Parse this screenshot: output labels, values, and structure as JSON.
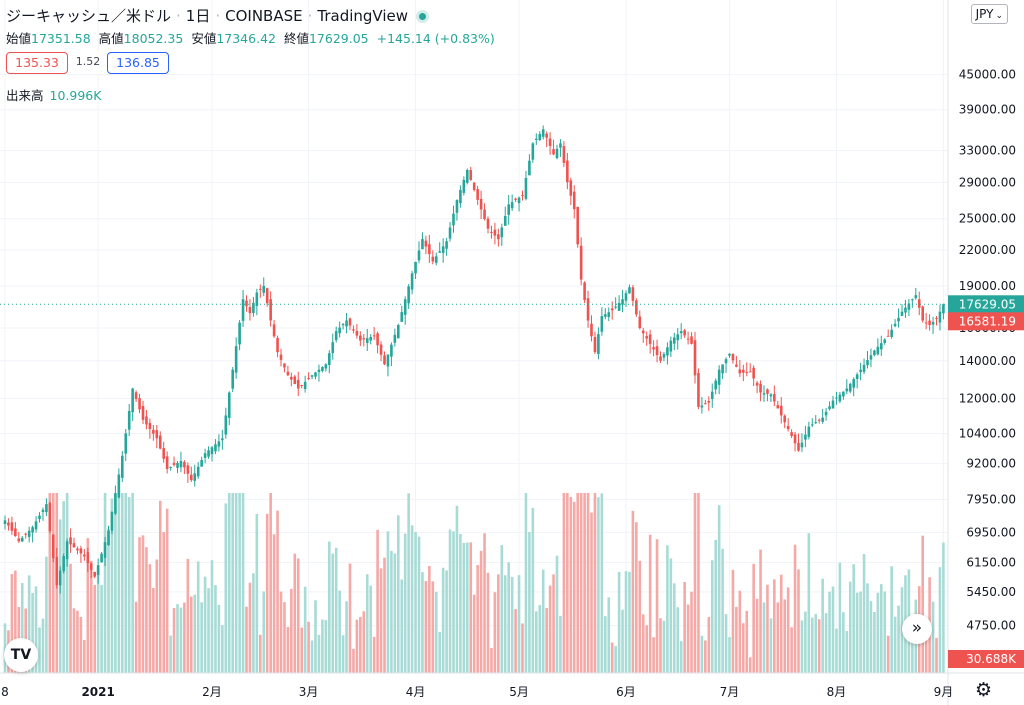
{
  "header": {
    "symbol": "ジーキャッシュ／米ドル",
    "interval": "1日",
    "exchange": "COINBASE",
    "provider": "TradingView",
    "live_icon": "live-dot-icon"
  },
  "ohlc": {
    "open_label": "始値",
    "open": "17351.58",
    "high_label": "高値",
    "high": "18052.35",
    "low_label": "安値",
    "low": "17346.42",
    "close_label": "終値",
    "close": "17629.05",
    "change": "+145.14 (+0.83%)"
  },
  "quote": {
    "sell": "135.33",
    "spread": "1.52",
    "buy": "136.85"
  },
  "volume": {
    "label": "出来高",
    "value": "10.996K"
  },
  "currency_button": "JPY",
  "colors": {
    "up": "#26a69a",
    "down": "#ef5350",
    "up_volume": "#a8dbd5",
    "down_volume": "#f4a9a7"
  },
  "icons": {
    "forward": "double-chevron-right-icon",
    "logo": "tradingview-logo-icon",
    "settings": "gear-icon"
  },
  "chart_data": {
    "type": "candlestick",
    "scale": "log",
    "x_labels": [
      "8",
      "2021",
      "2月",
      "3月",
      "4月",
      "5月",
      "6月",
      "7月",
      "8月",
      "9月"
    ],
    "x_label_index": [
      0,
      27,
      60,
      88,
      119,
      149,
      180,
      210,
      241,
      272
    ],
    "y_ticks": [
      "4750.00",
      "5450.00",
      "6150.00",
      "6950.00",
      "7950.00",
      "9200.00",
      "10400.00",
      "12000.00",
      "14000.00",
      "16000.00",
      "19000.00",
      "22000.00",
      "25000.00",
      "29000.00",
      "33000.00",
      "39000.00",
      "45000.00"
    ],
    "y_range": [
      4300,
      54000
    ],
    "last_price_label": "17629.05",
    "bid_label": "16581.19",
    "volume_label": "30.688K",
    "volume_range": [
      0,
      80000
    ],
    "daily_close_anchors": [
      [
        0,
        7300
      ],
      [
        4,
        6700
      ],
      [
        8,
        7100
      ],
      [
        12,
        7800
      ],
      [
        15,
        5600
      ],
      [
        18,
        6700
      ],
      [
        23,
        6300
      ],
      [
        26,
        5800
      ],
      [
        30,
        7000
      ],
      [
        34,
        9500
      ],
      [
        37,
        12500
      ],
      [
        40,
        11000
      ],
      [
        44,
        10200
      ],
      [
        47,
        9000
      ],
      [
        51,
        9300
      ],
      [
        54,
        8600
      ],
      [
        58,
        9600
      ],
      [
        63,
        10200
      ],
      [
        66,
        13500
      ],
      [
        69,
        18000
      ],
      [
        71,
        17000
      ],
      [
        73,
        18500
      ],
      [
        75,
        19000
      ],
      [
        77,
        16500
      ],
      [
        79,
        14500
      ],
      [
        82,
        13200
      ],
      [
        85,
        12500
      ],
      [
        89,
        13200
      ],
      [
        93,
        13800
      ],
      [
        96,
        15800
      ],
      [
        99,
        16500
      ],
      [
        103,
        15200
      ],
      [
        107,
        15500
      ],
      [
        110,
        13800
      ],
      [
        114,
        16200
      ],
      [
        118,
        20000
      ],
      [
        121,
        23000
      ],
      [
        124,
        21000
      ],
      [
        128,
        22800
      ],
      [
        131,
        27000
      ],
      [
        134,
        30500
      ],
      [
        137,
        27000
      ],
      [
        140,
        24000
      ],
      [
        143,
        23000
      ],
      [
        146,
        26500
      ],
      [
        150,
        27500
      ],
      [
        153,
        34000
      ],
      [
        156,
        36000
      ],
      [
        159,
        32500
      ],
      [
        161,
        34000
      ],
      [
        163,
        29000
      ],
      [
        165,
        26000
      ],
      [
        167,
        19500
      ],
      [
        169,
        16500
      ],
      [
        171,
        14500
      ],
      [
        173,
        16800
      ],
      [
        176,
        17200
      ],
      [
        179,
        18000
      ],
      [
        181,
        18900
      ],
      [
        184,
        16000
      ],
      [
        187,
        15000
      ],
      [
        190,
        14000
      ],
      [
        193,
        15200
      ],
      [
        196,
        15800
      ],
      [
        199,
        15000
      ],
      [
        201,
        11600
      ],
      [
        204,
        11800
      ],
      [
        207,
        13500
      ],
      [
        210,
        14400
      ],
      [
        213,
        13300
      ],
      [
        216,
        13400
      ],
      [
        219,
        12300
      ],
      [
        222,
        12200
      ],
      [
        225,
        11200
      ],
      [
        228,
        10300
      ],
      [
        230,
        9700
      ],
      [
        233,
        10700
      ],
      [
        237,
        11100
      ],
      [
        240,
        11900
      ],
      [
        244,
        12500
      ],
      [
        248,
        13500
      ],
      [
        252,
        14600
      ],
      [
        256,
        15500
      ],
      [
        260,
        17100
      ],
      [
        264,
        18300
      ],
      [
        266,
        16500
      ],
      [
        268,
        16200
      ],
      [
        270,
        16600
      ],
      [
        272,
        17629
      ]
    ]
  }
}
